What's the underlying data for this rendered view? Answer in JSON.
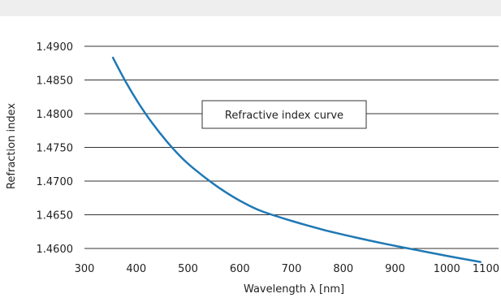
{
  "chart_data": {
    "type": "line",
    "title": "",
    "xlabel": "Wavelength λ [nm]",
    "ylabel": "Refraction index",
    "xlim": [
      300,
      1100
    ],
    "ylim": [
      1.46,
      1.49
    ],
    "x_ticks": [
      300,
      400,
      500,
      600,
      700,
      800,
      900,
      1000,
      1100
    ],
    "x_tick_labels": [
      "300",
      "400",
      "500",
      "600",
      "700",
      "800",
      "900",
      "1000",
      "1100"
    ],
    "y_ticks": [
      1.46,
      1.465,
      1.47,
      1.475,
      1.48,
      1.485,
      1.49
    ],
    "y_tick_labels": [
      "1.4600",
      "1.4650",
      "1.4700",
      "1.4750",
      "1.4800",
      "1.4850",
      "1.4900"
    ],
    "grid": "horizontal",
    "annotation": "Refractive index curve",
    "series": [
      {
        "color": "#1f78b4",
        "x": [
          355,
          380,
          405,
          430,
          460,
          490,
          520,
          560,
          600,
          640,
          700,
          760,
          820,
          880,
          940,
          1000,
          1065
        ],
        "y": [
          1.4883,
          1.4847,
          1.4815,
          1.4787,
          1.4758,
          1.4733,
          1.4713,
          1.469,
          1.4671,
          1.4656,
          1.4641,
          1.4628,
          1.4617,
          1.4607,
          1.4598,
          1.4589,
          1.458
        ]
      }
    ]
  }
}
